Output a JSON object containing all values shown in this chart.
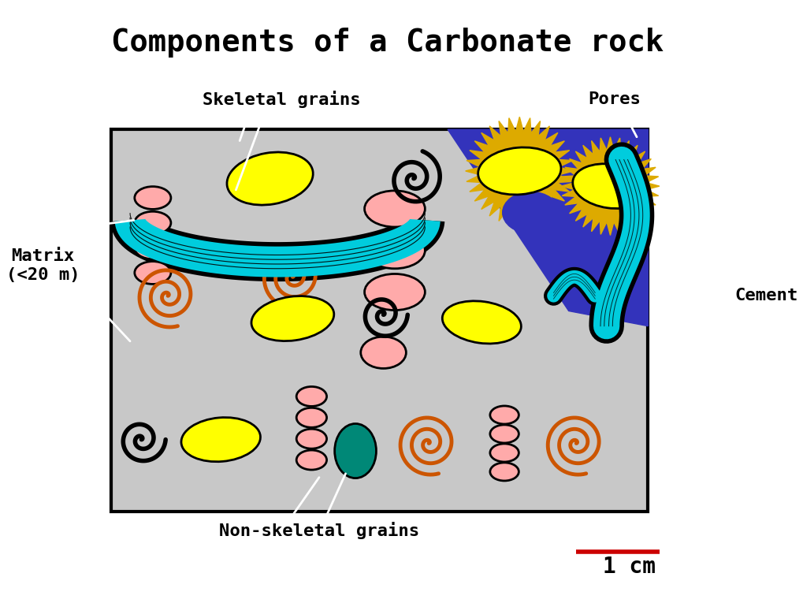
{
  "title": "Components of a Carbonate rock",
  "title_fontsize": 28,
  "title_fontweight": "bold",
  "title_fontfamily": "monospace",
  "background_color": "#ffffff",
  "box_bg": "#c8c8c8",
  "pore_color": "#3333bb",
  "yellow_grain": "#ffff00",
  "cyan_grain": "#00ccdd",
  "pink_grain": "#ffaaaa",
  "orange_spiral": "#cc5500",
  "teal_grain": "#008877",
  "label_skeletal": "Skeletal grains",
  "label_pores": "Pores",
  "label_matrix": "Matrix\n(<20 m)",
  "label_cement": "Cement",
  "label_nonskeletal": "Non-skeletal grains",
  "label_fontsize": 16,
  "label_fontweight": "bold",
  "label_fontfamily": "monospace",
  "scalebar_label": "1 cm",
  "scalebar_color": "#cc0000",
  "jagged_color": "#ddaa00"
}
